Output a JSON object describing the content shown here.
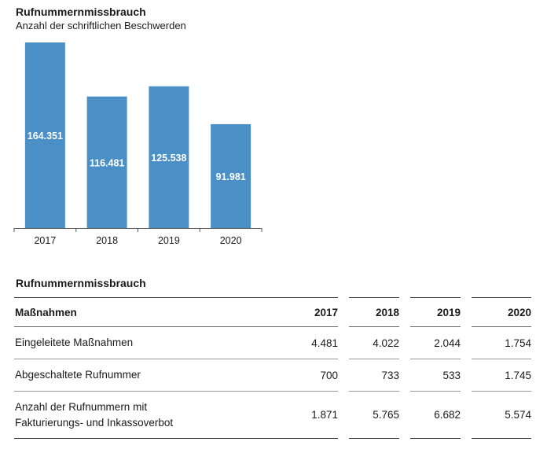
{
  "chart_data": {
    "type": "bar",
    "title": "Rufnummernmissbrauch",
    "subtitle": "Anzahl der schriftlichen Beschwerden",
    "categories": [
      "2017",
      "2018",
      "2019",
      "2020"
    ],
    "values": [
      164351,
      116481,
      125538,
      91981
    ],
    "value_labels": [
      "164.351",
      "116.481",
      "125.538",
      "91.981"
    ],
    "ylim": [
      0,
      164351
    ],
    "grid": false,
    "bar_color": "#4a90c7"
  },
  "table": {
    "title": "Rufnummernmissbrauch",
    "header": {
      "label": "Maßnahmen",
      "years": [
        "2017",
        "2018",
        "2019",
        "2020"
      ]
    },
    "rows": [
      {
        "label_lines": [
          "Eingeleitete Maßnahmen"
        ],
        "values": [
          "4.481",
          "4.022",
          "2.044",
          "1.754"
        ]
      },
      {
        "label_lines": [
          "Abgeschaltete Rufnummer"
        ],
        "values": [
          "700",
          "733",
          "533",
          "1.745"
        ]
      },
      {
        "label_lines": [
          "Anzahl der Rufnummern mit",
          "Fakturierungs- und Inkassoverbot"
        ],
        "values": [
          "1.871",
          "5.765",
          "6.682",
          "5.574"
        ]
      }
    ]
  }
}
